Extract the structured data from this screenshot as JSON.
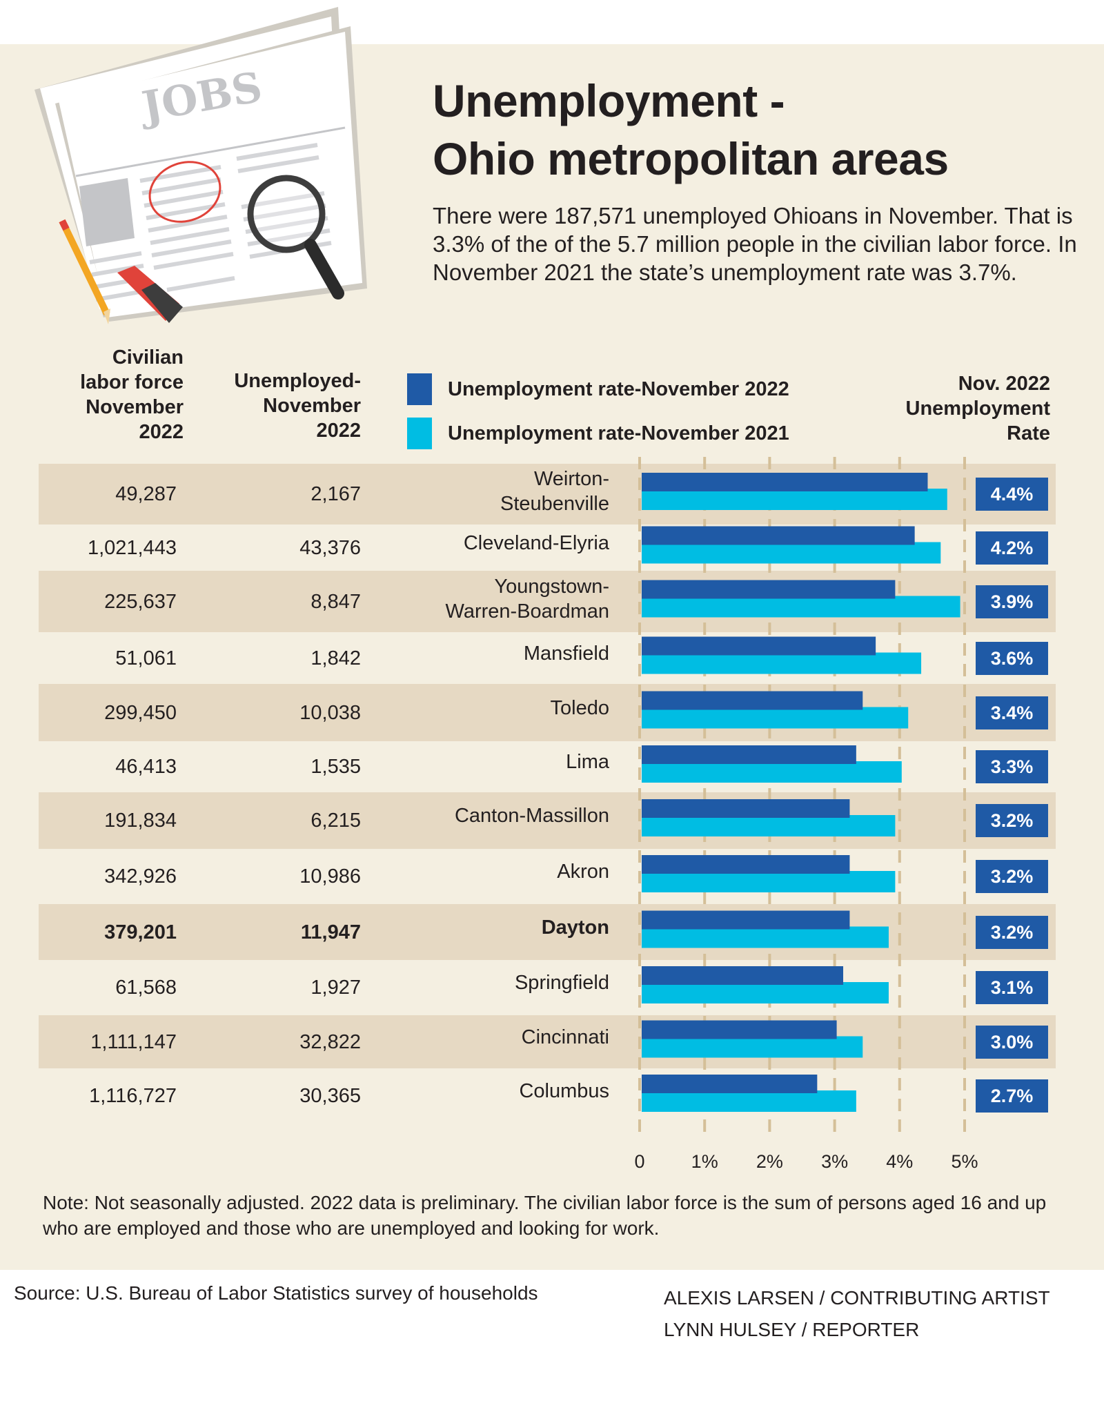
{
  "header": {
    "title_line1": "Unemployment -",
    "title_line2": "Ohio metropolitan areas",
    "dek": "There were 187,571 unemployed Ohioans in November. That is 3.3%  of the of the 5.7 million people in the civilian labor force. In November 2021 the state’s unemployment rate was 3.7%.",
    "illustration": {
      "newspaper_heading": "JOBS",
      "icons": [
        "newspaper-icon",
        "magnifying-glass-icon",
        "pencil-icon",
        "marker-icon"
      ]
    }
  },
  "columns": {
    "labor_force": [
      "Civilian",
      "labor force",
      "November",
      "2022"
    ],
    "unemployed": [
      "Unemployed-",
      "November",
      "2022"
    ],
    "rate": [
      "Nov. 2022",
      "Unemployment",
      "Rate"
    ]
  },
  "legend": [
    {
      "label": "Unemployment rate-November 2022",
      "color": "#1f5aa6"
    },
    {
      "label": "Unemployment rate-November 2021",
      "color": "#00bde3"
    }
  ],
  "rows": [
    {
      "area": [
        "Weirton-",
        "Steubenville"
      ],
      "labor_force": "49,287",
      "unemployed": "2,167",
      "rate_label": "4.4%",
      "bold": false
    },
    {
      "area": [
        "Cleveland-Elyria"
      ],
      "labor_force": "1,021,443",
      "unemployed": "43,376",
      "rate_label": "4.2%",
      "bold": false
    },
    {
      "area": [
        "Youngstown-",
        "Warren-Boardman"
      ],
      "labor_force": "225,637",
      "unemployed": "8,847",
      "rate_label": "3.9%",
      "bold": false
    },
    {
      "area": [
        "Mansfield"
      ],
      "labor_force": "51,061",
      "unemployed": "1,842",
      "rate_label": "3.6%",
      "bold": false
    },
    {
      "area": [
        "Toledo"
      ],
      "labor_force": "299,450",
      "unemployed": "10,038",
      "rate_label": "3.4%",
      "bold": false
    },
    {
      "area": [
        "Lima"
      ],
      "labor_force": "46,413",
      "unemployed": "1,535",
      "rate_label": "3.3%",
      "bold": false
    },
    {
      "area": [
        "Canton-Massillon"
      ],
      "labor_force": "191,834",
      "unemployed": "6,215",
      "rate_label": "3.2%",
      "bold": false
    },
    {
      "area": [
        "Akron"
      ],
      "labor_force": "342,926",
      "unemployed": "10,986",
      "rate_label": "3.2%",
      "bold": false
    },
    {
      "area": [
        "Dayton"
      ],
      "labor_force": "379,201",
      "unemployed": "11,947",
      "rate_label": "3.2%",
      "bold": true
    },
    {
      "area": [
        "Springfield"
      ],
      "labor_force": "61,568",
      "unemployed": "1,927",
      "rate_label": "3.1%",
      "bold": false
    },
    {
      "area": [
        "Cincinnati"
      ],
      "labor_force": "1,111,147",
      "unemployed": "32,822",
      "rate_label": "3.0%",
      "bold": false
    },
    {
      "area": [
        "Columbus"
      ],
      "labor_force": "1,116,727",
      "unemployed": "30,365",
      "rate_label": "2.7%",
      "bold": false
    }
  ],
  "chart_data": {
    "type": "bar",
    "orientation": "horizontal",
    "title": "Unemployment - Ohio metropolitan areas",
    "xlabel": "",
    "ylabel": "",
    "xlim": [
      0,
      5
    ],
    "x_ticks": [
      "0",
      "1%",
      "2%",
      "3%",
      "4%",
      "5%"
    ],
    "grid": true,
    "legend_position": "top",
    "categories": [
      "Weirton-Steubenville",
      "Cleveland-Elyria",
      "Youngstown-Warren-Boardman",
      "Mansfield",
      "Toledo",
      "Lima",
      "Canton-Massillon",
      "Akron",
      "Dayton",
      "Springfield",
      "Cincinnati",
      "Columbus"
    ],
    "series": [
      {
        "name": "Unemployment rate-November 2022",
        "color": "#1f5aa6",
        "values": [
          4.4,
          4.2,
          3.9,
          3.6,
          3.4,
          3.3,
          3.2,
          3.2,
          3.2,
          3.1,
          3.0,
          2.7
        ]
      },
      {
        "name": "Unemployment rate-November 2021",
        "color": "#00bde3",
        "values": [
          4.7,
          4.6,
          4.9,
          4.3,
          4.1,
          4.0,
          3.9,
          3.9,
          3.8,
          3.8,
          3.4,
          3.3
        ]
      }
    ]
  },
  "footer": {
    "note": "Note: Not seasonally adjusted. 2022 data is preliminary. The civilian labor force is the sum of persons aged 16 and up who are employed and those who are unemployed and looking for work.",
    "source": "Source: U.S. Bureau of Labor Statistics survey of households",
    "credits": [
      "ALEXIS LARSEN / CONTRIBUTING ARTIST",
      "LYNN HULSEY / REPORTER"
    ]
  }
}
